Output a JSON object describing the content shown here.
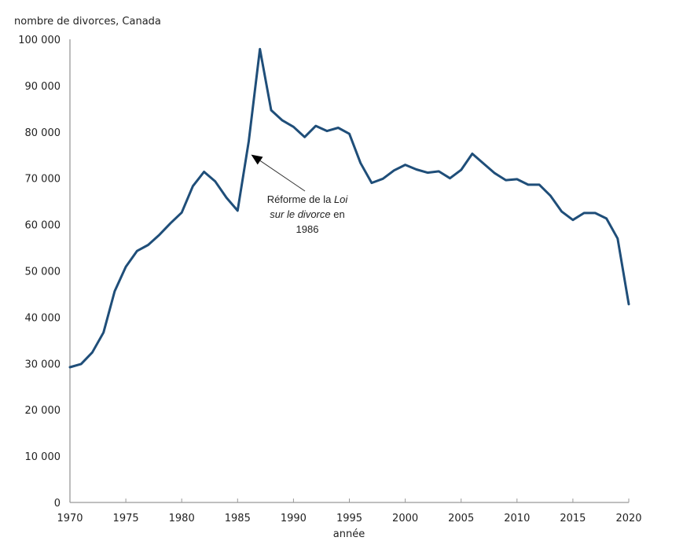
{
  "chart_data": {
    "type": "line",
    "title": "",
    "ylabel": "nombre de divorces, Canada",
    "xlabel": "année",
    "xlim": [
      1970,
      2020
    ],
    "ylim": [
      0,
      100000
    ],
    "grid": false,
    "x_ticks": [
      "1970",
      "1975",
      "1980",
      "1985",
      "1990",
      "1995",
      "2000",
      "2005",
      "2010",
      "2015",
      "2020"
    ],
    "y_ticks": [
      "0",
      "10 000",
      "20 000",
      "30 000",
      "40 000",
      "50 000",
      "60 000",
      "70 000",
      "80 000",
      "90 000",
      "100 000"
    ],
    "series": [
      {
        "name": "nombre de divorces",
        "color": "#1f4e79",
        "x": [
          1970,
          1971,
          1972,
          1973,
          1974,
          1975,
          1976,
          1977,
          1978,
          1979,
          1980,
          1981,
          1982,
          1983,
          1984,
          1985,
          1986,
          1987,
          1988,
          1989,
          1990,
          1991,
          1992,
          1993,
          1994,
          1995,
          1996,
          1997,
          1998,
          1999,
          2000,
          2001,
          2002,
          2003,
          2004,
          2005,
          2006,
          2007,
          2008,
          2009,
          2010,
          2011,
          2012,
          2013,
          2014,
          2015,
          2016,
          2017,
          2018,
          2019,
          2020
        ],
        "values": [
          29200,
          29900,
          32400,
          36700,
          45600,
          50900,
          54300,
          55600,
          57800,
          60300,
          62600,
          68300,
          71400,
          69300,
          65800,
          63000,
          78000,
          97900,
          84700,
          82500,
          81100,
          78900,
          81300,
          80200,
          80900,
          79600,
          73300,
          69000,
          69900,
          71700,
          72900,
          71900,
          71200,
          71500,
          70000,
          71800,
          75300,
          73200,
          71100,
          69600,
          69800,
          68600,
          68600,
          66200,
          62800,
          61000,
          62500,
          62500,
          61300,
          57000,
          42800
        ]
      }
    ],
    "annotation": {
      "line1_prefix": "Réforme de la ",
      "line1_italic": "Loi",
      "line2_italic": "sur le divorce",
      "line2_suffix": " en",
      "line3": "1986",
      "points_to": {
        "x": 1986,
        "y": 78000
      }
    }
  }
}
